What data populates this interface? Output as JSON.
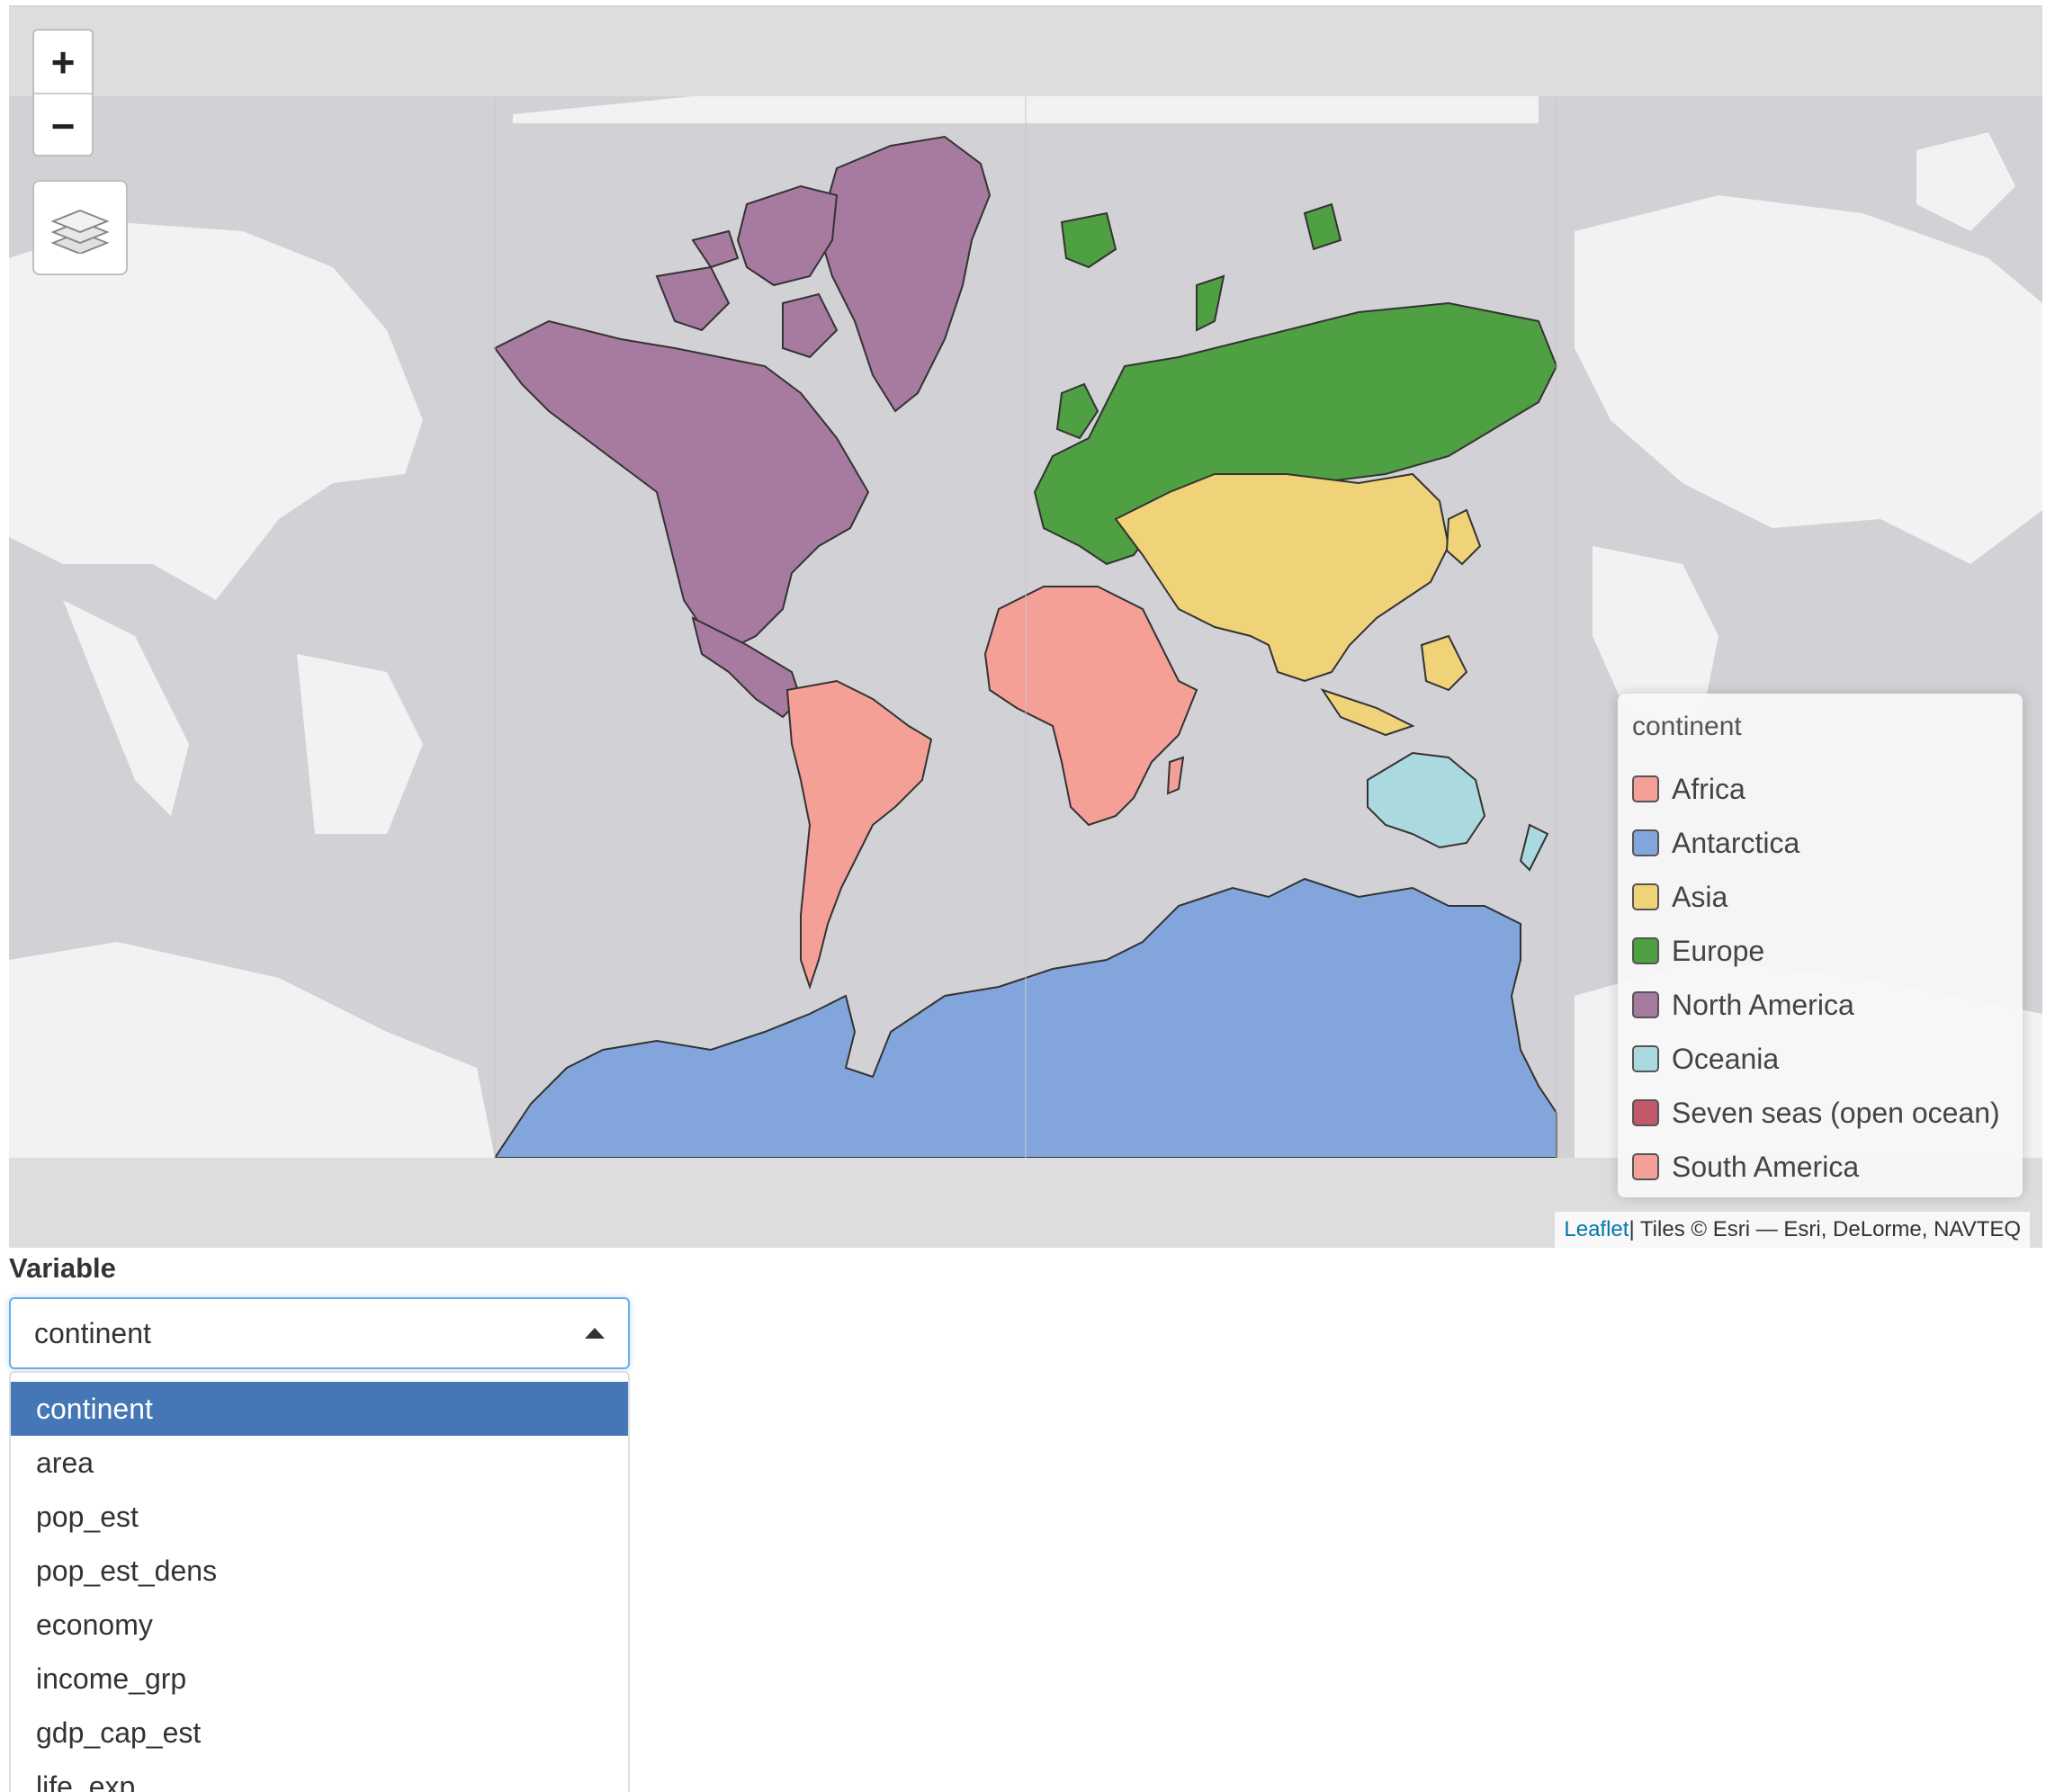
{
  "map": {
    "zoom_in": "+",
    "zoom_out": "−",
    "layers_icon": "layers-icon",
    "legend": {
      "title": "continent",
      "items": [
        {
          "label": "Africa",
          "color": "#f4a097"
        },
        {
          "label": "Antarctica",
          "color": "#82a6dc"
        },
        {
          "label": "Asia",
          "color": "#f0d378"
        },
        {
          "label": "Europe",
          "color": "#4fa042"
        },
        {
          "label": "North America",
          "color": "#a77aa0"
        },
        {
          "label": "Oceania",
          "color": "#abd9e0"
        },
        {
          "label": "Seven seas (open ocean)",
          "color": "#c05a6b"
        },
        {
          "label": "South America",
          "color": "#f4a097"
        }
      ]
    },
    "attribution": {
      "link": "Leaflet",
      "text": " | Tiles © Esri — Esri, DeLorme, NAVTEQ"
    },
    "colors": {
      "ocean": "#d2d2d6",
      "basemap_land": "#f2f2f2",
      "border": "#333333"
    }
  },
  "control": {
    "label": "Variable",
    "selected": "continent",
    "options": [
      "continent",
      "area",
      "pop_est",
      "pop_est_dens",
      "economy",
      "income_grp",
      "gdp_cap_est",
      "life_exp"
    ]
  }
}
